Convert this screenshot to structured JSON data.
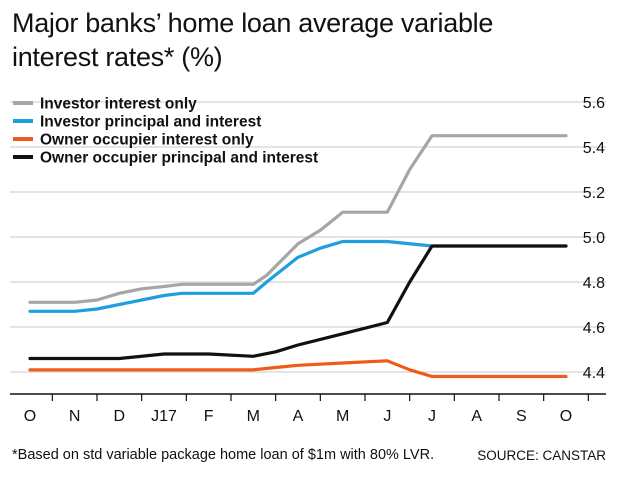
{
  "chart_data": {
    "type": "line",
    "title": "Major banks’ home loan average variable interest rates* (%)",
    "footnote": "*Based on std variable package home loan of $1m with 80% LVR.",
    "source": "SOURCE: CANSTAR",
    "categories": [
      "O",
      "N",
      "D",
      "J17",
      "F",
      "M",
      "A",
      "M",
      "J",
      "J",
      "A",
      "S",
      "O"
    ],
    "ylim": [
      4.3,
      5.6
    ],
    "yticks": [
      4.4,
      4.6,
      4.8,
      5.0,
      5.2,
      5.4,
      5.6
    ],
    "ytick_labels": [
      "4.4",
      "4.6",
      "4.8",
      "5.0",
      "5.2",
      "5.4",
      "5.6"
    ],
    "grid": true,
    "legend_position": "top-left",
    "series": [
      {
        "name": "Investor interest only",
        "color": "#a6a6a6",
        "x": [
          0,
          1,
          1.5,
          2,
          2.5,
          3,
          3.4,
          4,
          5,
          5.3,
          6,
          6.5,
          7,
          7.5,
          8,
          8.5,
          9,
          10,
          11,
          12
        ],
        "values": [
          4.71,
          4.71,
          4.72,
          4.75,
          4.77,
          4.78,
          4.79,
          4.79,
          4.79,
          4.83,
          4.97,
          5.03,
          5.11,
          5.11,
          5.11,
          5.3,
          5.45,
          5.45,
          5.45,
          5.45
        ]
      },
      {
        "name": "Investor principal and interest",
        "color": "#1f9ee0",
        "x": [
          0,
          1,
          1.5,
          2,
          2.5,
          3,
          3.4,
          4,
          5,
          5.3,
          6,
          6.5,
          7,
          8,
          9,
          10,
          11,
          12
        ],
        "values": [
          4.67,
          4.67,
          4.68,
          4.7,
          4.72,
          4.74,
          4.75,
          4.75,
          4.75,
          4.8,
          4.91,
          4.95,
          4.98,
          4.98,
          4.96,
          4.96,
          4.96,
          4.96
        ]
      },
      {
        "name": "Owner occupier interest only",
        "color": "#f05a1a",
        "x": [
          0,
          1,
          2,
          3,
          4,
          5,
          5.5,
          6,
          7,
          8,
          8.5,
          9,
          10,
          11,
          12
        ],
        "values": [
          4.41,
          4.41,
          4.41,
          4.41,
          4.41,
          4.41,
          4.42,
          4.43,
          4.44,
          4.45,
          4.41,
          4.38,
          4.38,
          4.38,
          4.38
        ]
      },
      {
        "name": "Owner occupier principal and interest",
        "color": "#111111",
        "x": [
          0,
          1,
          2,
          3,
          4,
          5,
          5.5,
          6,
          7,
          8,
          8.5,
          9,
          10,
          11,
          12
        ],
        "values": [
          4.46,
          4.46,
          4.46,
          4.48,
          4.48,
          4.47,
          4.49,
          4.52,
          4.57,
          4.62,
          4.8,
          4.96,
          4.96,
          4.96,
          4.96
        ]
      }
    ]
  }
}
